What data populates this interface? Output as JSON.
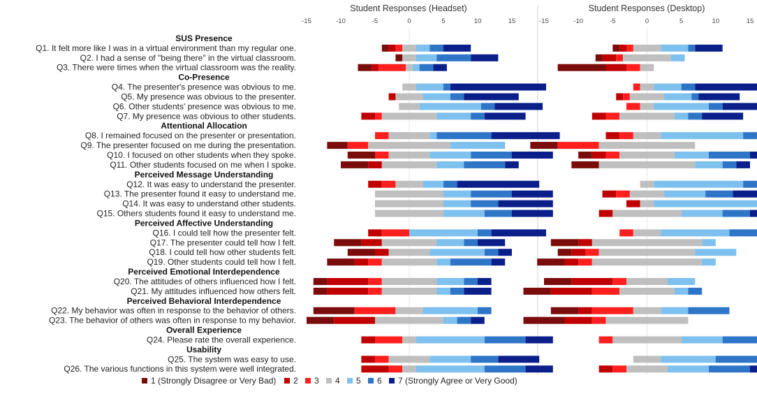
{
  "chart_data": {
    "type": "bar",
    "stacked": "diverging-horizontal",
    "legend_position": "bottom",
    "panels": [
      {
        "key": "headset",
        "title": "Student Responses (Headset)",
        "xlim": [
          -15,
          15
        ],
        "ticks": [
          -15,
          -10,
          -5,
          0,
          5,
          10,
          15
        ]
      },
      {
        "key": "desktop",
        "title": "Student Responses (Desktop)",
        "xlim": [
          -15,
          15
        ],
        "ticks": [
          -15,
          -10,
          -5,
          0,
          5,
          10,
          15
        ]
      }
    ],
    "legend": [
      {
        "label": "1 (Strongly Disagree or Very Bad)",
        "color": "#7b0c0c"
      },
      {
        "label": "2",
        "color": "#c00000"
      },
      {
        "label": "3",
        "color": "#ff1f1f"
      },
      {
        "label": "4",
        "color": "#bfbfbf"
      },
      {
        "label": "5",
        "color": "#7ec0ee"
      },
      {
        "label": "6",
        "color": "#2e75c8"
      },
      {
        "label": "7 (Strongly Agree or Very Good)",
        "color": "#0b1f8a"
      }
    ],
    "rows": [
      {
        "kind": "category",
        "label": "SUS Presence"
      },
      {
        "kind": "question",
        "label": "Q1. It felt more like I was in a virtual environment than my regular one.",
        "headset": [
          1,
          1,
          1,
          2,
          2,
          2,
          4
        ],
        "desktop": [
          1,
          1,
          1,
          4,
          4,
          1,
          4
        ]
      },
      {
        "kind": "question",
        "label": "Q2. I had a sense of \"being there\" in the virtual classroom.",
        "headset": [
          1,
          0,
          0,
          2,
          3,
          5,
          4
        ],
        "desktop": [
          1,
          2,
          1,
          7,
          2,
          0,
          0
        ]
      },
      {
        "kind": "question",
        "label": "Q3. There were times when the virtual classroom was the reality.",
        "headset": [
          2,
          1,
          4,
          1,
          1,
          2,
          2
        ],
        "desktop": [
          7,
          3,
          2,
          2,
          0,
          0,
          0
        ]
      },
      {
        "kind": "category",
        "label": "Co-Presence"
      },
      {
        "kind": "question",
        "label": "Q4. The presenter's presence was obvious to me.",
        "headset": [
          0,
          0,
          0,
          2,
          4,
          1,
          14
        ],
        "desktop": [
          0,
          0,
          1,
          2,
          4,
          2,
          14
        ]
      },
      {
        "kind": "question",
        "label": "Q5. My presence was obvious to the presenter.",
        "headset": [
          0,
          1,
          0,
          4,
          4,
          2,
          8
        ],
        "desktop": [
          0,
          1,
          1,
          5,
          4,
          1,
          6
        ]
      },
      {
        "kind": "question",
        "label": "Q6. Other students' presence was obvious to me.",
        "headset": [
          0,
          0,
          0,
          3,
          9,
          2,
          7
        ],
        "desktop": [
          0,
          0,
          2,
          2,
          8,
          2,
          8
        ]
      },
      {
        "kind": "question",
        "label": "Q7. My presence was obvious to other students.",
        "headset": [
          0,
          2,
          1,
          8,
          5,
          2,
          6
        ],
        "desktop": [
          0,
          2,
          2,
          8,
          2,
          2,
          6
        ]
      },
      {
        "kind": "category",
        "label": "Attentional Allocation"
      },
      {
        "kind": "question",
        "label": "Q8. I remained focused on the presenter or presentation.",
        "headset": [
          0,
          0,
          2,
          6,
          1,
          8,
          10
        ],
        "desktop": [
          0,
          2,
          2,
          4,
          12,
          2,
          6
        ]
      },
      {
        "kind": "question",
        "label": "Q9. The presenter focused on me during the presentation.",
        "headset": [
          3,
          0,
          3,
          12,
          8,
          0,
          0
        ],
        "desktop": [
          4,
          0,
          6,
          14,
          0,
          0,
          0
        ]
      },
      {
        "kind": "question",
        "label": "Q10. I focused on other students when they spoke.",
        "headset": [
          4,
          0,
          2,
          6,
          6,
          6,
          6
        ],
        "desktop": [
          2,
          2,
          2,
          8,
          5,
          6,
          2
        ]
      },
      {
        "kind": "question",
        "label": "Q11. Other students focused on me when I spoke.",
        "headset": [
          4,
          2,
          0,
          8,
          4,
          6,
          2
        ],
        "desktop": [
          4,
          0,
          0,
          14,
          4,
          2,
          2
        ]
      },
      {
        "kind": "category",
        "label": "Perceived Message Understanding"
      },
      {
        "kind": "question",
        "label": "Q12. It was easy to understand the presenter.",
        "headset": [
          0,
          2,
          2,
          4,
          3,
          2,
          12
        ],
        "desktop": [
          0,
          0,
          0,
          2,
          13,
          2,
          10
        ]
      },
      {
        "kind": "question",
        "label": "Q13. The presenter found it easy to understand me.",
        "headset": [
          0,
          0,
          0,
          10,
          4,
          6,
          6
        ],
        "desktop": [
          0,
          2,
          2,
          5,
          6,
          4,
          6
        ]
      },
      {
        "kind": "question",
        "label": "Q14. It was easy to understand other students.",
        "headset": [
          0,
          0,
          0,
          10,
          4,
          4,
          8
        ],
        "desktop": [
          0,
          2,
          0,
          2,
          16,
          2,
          2
        ]
      },
      {
        "kind": "question",
        "label": "Q15. Others students found it easy to understand me.",
        "headset": [
          0,
          0,
          0,
          10,
          6,
          4,
          6
        ],
        "desktop": [
          0,
          2,
          0,
          10,
          6,
          4,
          4
        ]
      },
      {
        "kind": "category",
        "label": "Perceived Affective Understanding"
      },
      {
        "kind": "question",
        "label": "Q16. I could tell how the presenter felt.",
        "headset": [
          0,
          2,
          4,
          0,
          10,
          2,
          8
        ],
        "desktop": [
          0,
          0,
          2,
          4,
          10,
          10,
          0
        ]
      },
      {
        "kind": "question",
        "label": "Q17. The presenter could tell how I felt.",
        "headset": [
          4,
          3,
          0,
          8,
          4,
          2,
          4
        ],
        "desktop": [
          4,
          2,
          0,
          16,
          2,
          0,
          0
        ]
      },
      {
        "kind": "question",
        "label": "Q18. I could tell how other students felt.",
        "headset": [
          4,
          2,
          0,
          6,
          8,
          2,
          2
        ],
        "desktop": [
          2,
          2,
          2,
          14,
          6,
          0,
          0
        ]
      },
      {
        "kind": "question",
        "label": "Q19. Other students could tell how I felt.",
        "headset": [
          4,
          2,
          2,
          8,
          2,
          6,
          2
        ],
        "desktop": [
          4,
          2,
          2,
          16,
          2,
          0,
          0
        ]
      },
      {
        "kind": "category",
        "label": "Perceived Emotional Interdependence"
      },
      {
        "kind": "question",
        "label": "Q20. The attitudes of others influenced how I felt.",
        "headset": [
          2,
          6,
          2,
          8,
          4,
          2,
          2
        ],
        "desktop": [
          4,
          6,
          2,
          6,
          4,
          0,
          0
        ]
      },
      {
        "kind": "question",
        "label": "Q21. My attitudes influenced how others felt.",
        "headset": [
          2,
          6,
          2,
          8,
          2,
          2,
          4
        ],
        "desktop": [
          4,
          6,
          4,
          8,
          2,
          2,
          0
        ]
      },
      {
        "kind": "category",
        "label": "Perceived Behavioral Interdependence"
      },
      {
        "kind": "question",
        "label": "Q22. My behavior was often in response to the behavior of others.",
        "headset": [
          6,
          0,
          6,
          4,
          8,
          2,
          0
        ],
        "desktop": [
          4,
          2,
          6,
          4,
          4,
          6,
          0
        ]
      },
      {
        "kind": "question",
        "label": "Q23. The behavior of others was often in response to my behavior.",
        "headset": [
          4,
          6,
          0,
          10,
          2,
          2,
          2
        ],
        "desktop": [
          6,
          4,
          2,
          12,
          0,
          0,
          0
        ]
      },
      {
        "kind": "category",
        "label": "Overall Experience"
      },
      {
        "kind": "question",
        "label": "Q24. Please rate the overall experience.",
        "headset": [
          0,
          2,
          4,
          2,
          10,
          6,
          4
        ],
        "desktop": [
          0,
          0,
          2,
          10,
          6,
          6,
          2
        ]
      },
      {
        "kind": "category",
        "label": "Usability"
      },
      {
        "kind": "question",
        "label": "Q25. The system was easy to use.",
        "headset": [
          0,
          2,
          2,
          6,
          6,
          4,
          6
        ],
        "desktop": [
          0,
          0,
          0,
          4,
          8,
          8,
          6
        ]
      },
      {
        "kind": "question",
        "label": "Q26. The various functions in this system were well integrated.",
        "headset": [
          0,
          4,
          2,
          2,
          10,
          6,
          4
        ],
        "desktop": [
          0,
          2,
          2,
          6,
          6,
          6,
          6
        ]
      }
    ]
  }
}
